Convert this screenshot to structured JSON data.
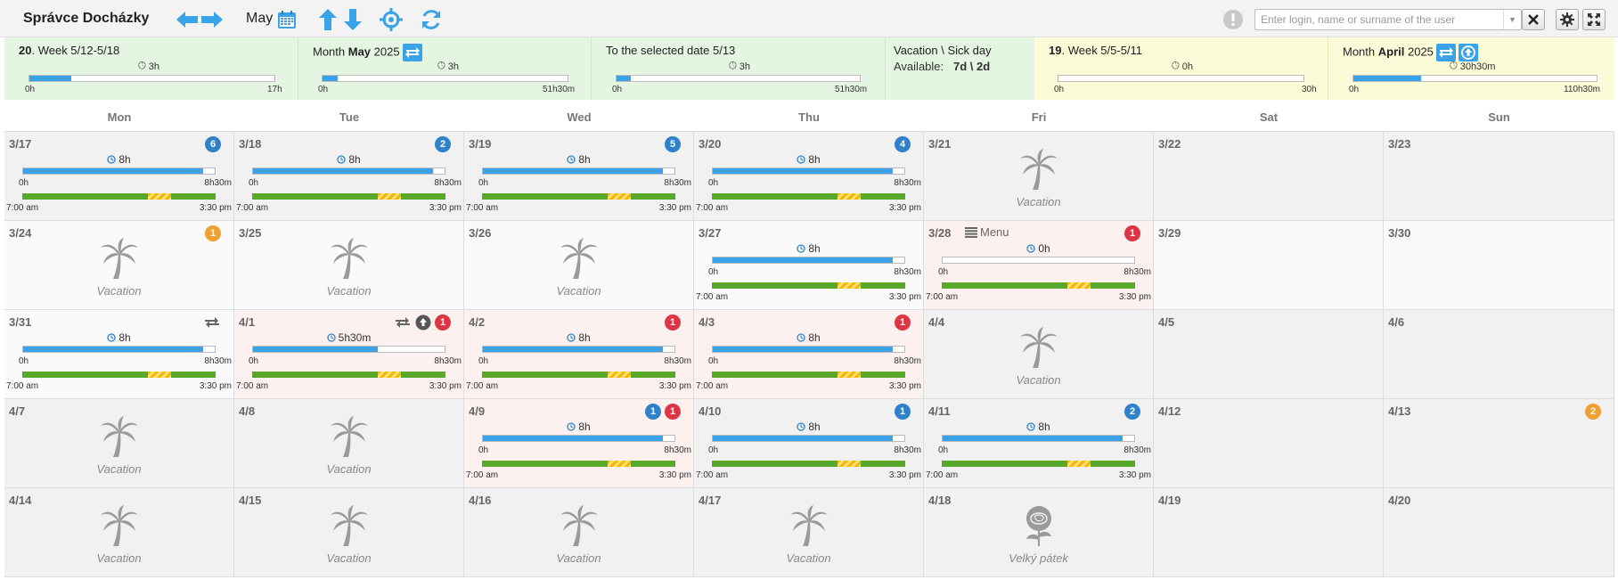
{
  "toolbar": {
    "title": "Správce Docházky",
    "month": "May",
    "search_placeholder": "Enter login, name or surname of the user",
    "icons": [
      "arrow-left-icon",
      "arrow-right-icon",
      "calendar-icon",
      "arrow-up-icon",
      "arrow-down-icon",
      "crosshair-icon",
      "refresh-icon",
      "warning-icon",
      "close-icon",
      "gear-icon",
      "fullscreen-icon"
    ]
  },
  "summary": {
    "week": {
      "num": "20",
      "label": ". Week 5/12-5/18",
      "hours": "3h",
      "min": "0h",
      "max": "17h",
      "progress": 0.17
    },
    "month": {
      "prefix": "Month ",
      "name": "May",
      "year": " 2025",
      "hours": "3h",
      "min": "0h",
      "max": "51h30m",
      "progress": 0.06
    },
    "to_date": {
      "label": "To the selected date 5/13",
      "hours": "3h",
      "min": "0h",
      "max": "51h30m",
      "progress": 0.06
    },
    "vacation": {
      "title": "Vacation \\ Sick day",
      "available_label": "Available:",
      "available_value": "7d \\ 2d"
    },
    "prev_week": {
      "num": "19",
      "label": ". Week 5/5-5/11",
      "hours": "0h",
      "min": "0h",
      "max": "30h",
      "progress": 0
    },
    "prev_month": {
      "prefix": "Month ",
      "name": "April",
      "year": " 2025",
      "hours": "30h30m",
      "min": "0h",
      "max": "110h30m",
      "progress": 0.28
    }
  },
  "weekdays": [
    "Mon",
    "Tue",
    "Wed",
    "Thu",
    "Fri",
    "Sat",
    "Sun"
  ],
  "calendar": {
    "weeks": [
      [
        {
          "date": "3/17",
          "type": "work",
          "badges": [
            {
              "n": "6",
              "c": "blue"
            }
          ],
          "hours": "8h",
          "progress": 0.94,
          "min": "0h",
          "max": "8h30m",
          "start": "7:00 am",
          "end": "3:30 pm",
          "bg": "gray"
        },
        {
          "date": "3/18",
          "type": "work",
          "badges": [
            {
              "n": "2",
              "c": "blue"
            }
          ],
          "hours": "8h",
          "progress": 0.94,
          "min": "0h",
          "max": "8h30m",
          "start": "7:00 am",
          "end": "3:30 pm",
          "bg": "gray"
        },
        {
          "date": "3/19",
          "type": "work",
          "badges": [
            {
              "n": "5",
              "c": "blue"
            }
          ],
          "hours": "8h",
          "progress": 0.94,
          "min": "0h",
          "max": "8h30m",
          "start": "7:00 am",
          "end": "3:30 pm",
          "bg": "gray"
        },
        {
          "date": "3/20",
          "type": "work",
          "badges": [
            {
              "n": "4",
              "c": "blue"
            }
          ],
          "hours": "8h",
          "progress": 0.94,
          "min": "0h",
          "max": "8h30m",
          "start": "7:00 am",
          "end": "3:30 pm",
          "bg": "gray"
        },
        {
          "date": "3/21",
          "type": "vacation",
          "label": "Vacation",
          "bg": "gray"
        },
        {
          "date": "3/22",
          "type": "empty",
          "bg": "gray"
        },
        {
          "date": "3/23",
          "type": "empty",
          "bg": "gray"
        }
      ],
      [
        {
          "date": "3/24",
          "type": "vacation",
          "label": "Vacation",
          "badges": [
            {
              "n": "1",
              "c": "orange"
            }
          ],
          "bg": "white"
        },
        {
          "date": "3/25",
          "type": "vacation",
          "label": "Vacation",
          "bg": "white"
        },
        {
          "date": "3/26",
          "type": "vacation",
          "label": "Vacation",
          "bg": "white"
        },
        {
          "date": "3/27",
          "type": "work",
          "hours": "8h",
          "progress": 0.94,
          "min": "0h",
          "max": "8h30m",
          "start": "7:00 am",
          "end": "3:30 pm",
          "bg": "white"
        },
        {
          "date": "3/28",
          "type": "work",
          "menu": "Menu",
          "badges": [
            {
              "n": "1",
              "c": "red"
            }
          ],
          "hours": "0h",
          "progress": 0,
          "min": "0h",
          "max": "8h30m",
          "start": "7:00 am",
          "end": "3:30 pm",
          "bg": "pink"
        },
        {
          "date": "3/29",
          "type": "empty",
          "bg": "white"
        },
        {
          "date": "3/30",
          "type": "empty",
          "bg": "white"
        }
      ],
      [
        {
          "date": "3/31",
          "type": "work",
          "swap": true,
          "hours": "8h",
          "progress": 0.94,
          "min": "0h",
          "max": "8h30m",
          "start": "7:00 am",
          "end": "3:30 pm",
          "bg": "white"
        },
        {
          "date": "4/1",
          "type": "work",
          "swap": true,
          "upload": true,
          "badges": [
            {
              "n": "1",
              "c": "red"
            }
          ],
          "hours": "5h30m",
          "progress": 0.65,
          "min": "0h",
          "max": "8h30m",
          "start": "7:00 am",
          "end": "3:30 pm",
          "bg": "pink"
        },
        {
          "date": "4/2",
          "type": "work",
          "badges": [
            {
              "n": "1",
              "c": "red"
            }
          ],
          "hours": "8h",
          "progress": 0.94,
          "min": "0h",
          "max": "8h30m",
          "start": "7:00 am",
          "end": "3:30 pm",
          "bg": "pink"
        },
        {
          "date": "4/3",
          "type": "work",
          "badges": [
            {
              "n": "1",
              "c": "red"
            }
          ],
          "hours": "8h",
          "progress": 0.94,
          "min": "0h",
          "max": "8h30m",
          "start": "7:00 am",
          "end": "3:30 pm",
          "bg": "pink"
        },
        {
          "date": "4/4",
          "type": "vacation",
          "label": "Vacation",
          "bg": "gray"
        },
        {
          "date": "4/5",
          "type": "empty",
          "bg": "gray"
        },
        {
          "date": "4/6",
          "type": "empty",
          "bg": "gray"
        }
      ],
      [
        {
          "date": "4/7",
          "type": "vacation",
          "label": "Vacation",
          "bg": "gray"
        },
        {
          "date": "4/8",
          "type": "vacation",
          "label": "Vacation",
          "bg": "gray"
        },
        {
          "date": "4/9",
          "type": "work",
          "badges": [
            {
              "n": "1",
              "c": "blue"
            },
            {
              "n": "1",
              "c": "red"
            }
          ],
          "hours": "8h",
          "progress": 0.94,
          "min": "0h",
          "max": "8h30m",
          "start": "7:00 am",
          "end": "3:30 pm",
          "bg": "pink"
        },
        {
          "date": "4/10",
          "type": "work",
          "badges": [
            {
              "n": "1",
              "c": "blue"
            }
          ],
          "hours": "8h",
          "progress": 0.94,
          "min": "0h",
          "max": "8h30m",
          "start": "7:00 am",
          "end": "3:30 pm",
          "bg": "gray"
        },
        {
          "date": "4/11",
          "type": "work",
          "badges": [
            {
              "n": "2",
              "c": "blue"
            }
          ],
          "hours": "8h",
          "progress": 0.94,
          "min": "0h",
          "max": "8h30m",
          "start": "7:00 am",
          "end": "3:30 pm",
          "bg": "gray"
        },
        {
          "date": "4/12",
          "type": "empty",
          "bg": "gray"
        },
        {
          "date": "4/13",
          "type": "empty",
          "badges": [
            {
              "n": "2",
              "c": "orange"
            }
          ],
          "bg": "gray"
        }
      ],
      [
        {
          "date": "4/14",
          "type": "vacation",
          "label": "Vacation",
          "bg": "gray"
        },
        {
          "date": "4/15",
          "type": "vacation",
          "label": "Vacation",
          "bg": "gray"
        },
        {
          "date": "4/16",
          "type": "vacation",
          "label": "Vacation",
          "bg": "gray"
        },
        {
          "date": "4/17",
          "type": "vacation",
          "label": "Vacation",
          "bg": "gray"
        },
        {
          "date": "4/18",
          "type": "holiday",
          "label": "Velký pátek",
          "bg": "gray"
        },
        {
          "date": "4/19",
          "type": "empty",
          "bg": "gray"
        },
        {
          "date": "4/20",
          "type": "empty",
          "bg": "gray"
        }
      ]
    ]
  }
}
